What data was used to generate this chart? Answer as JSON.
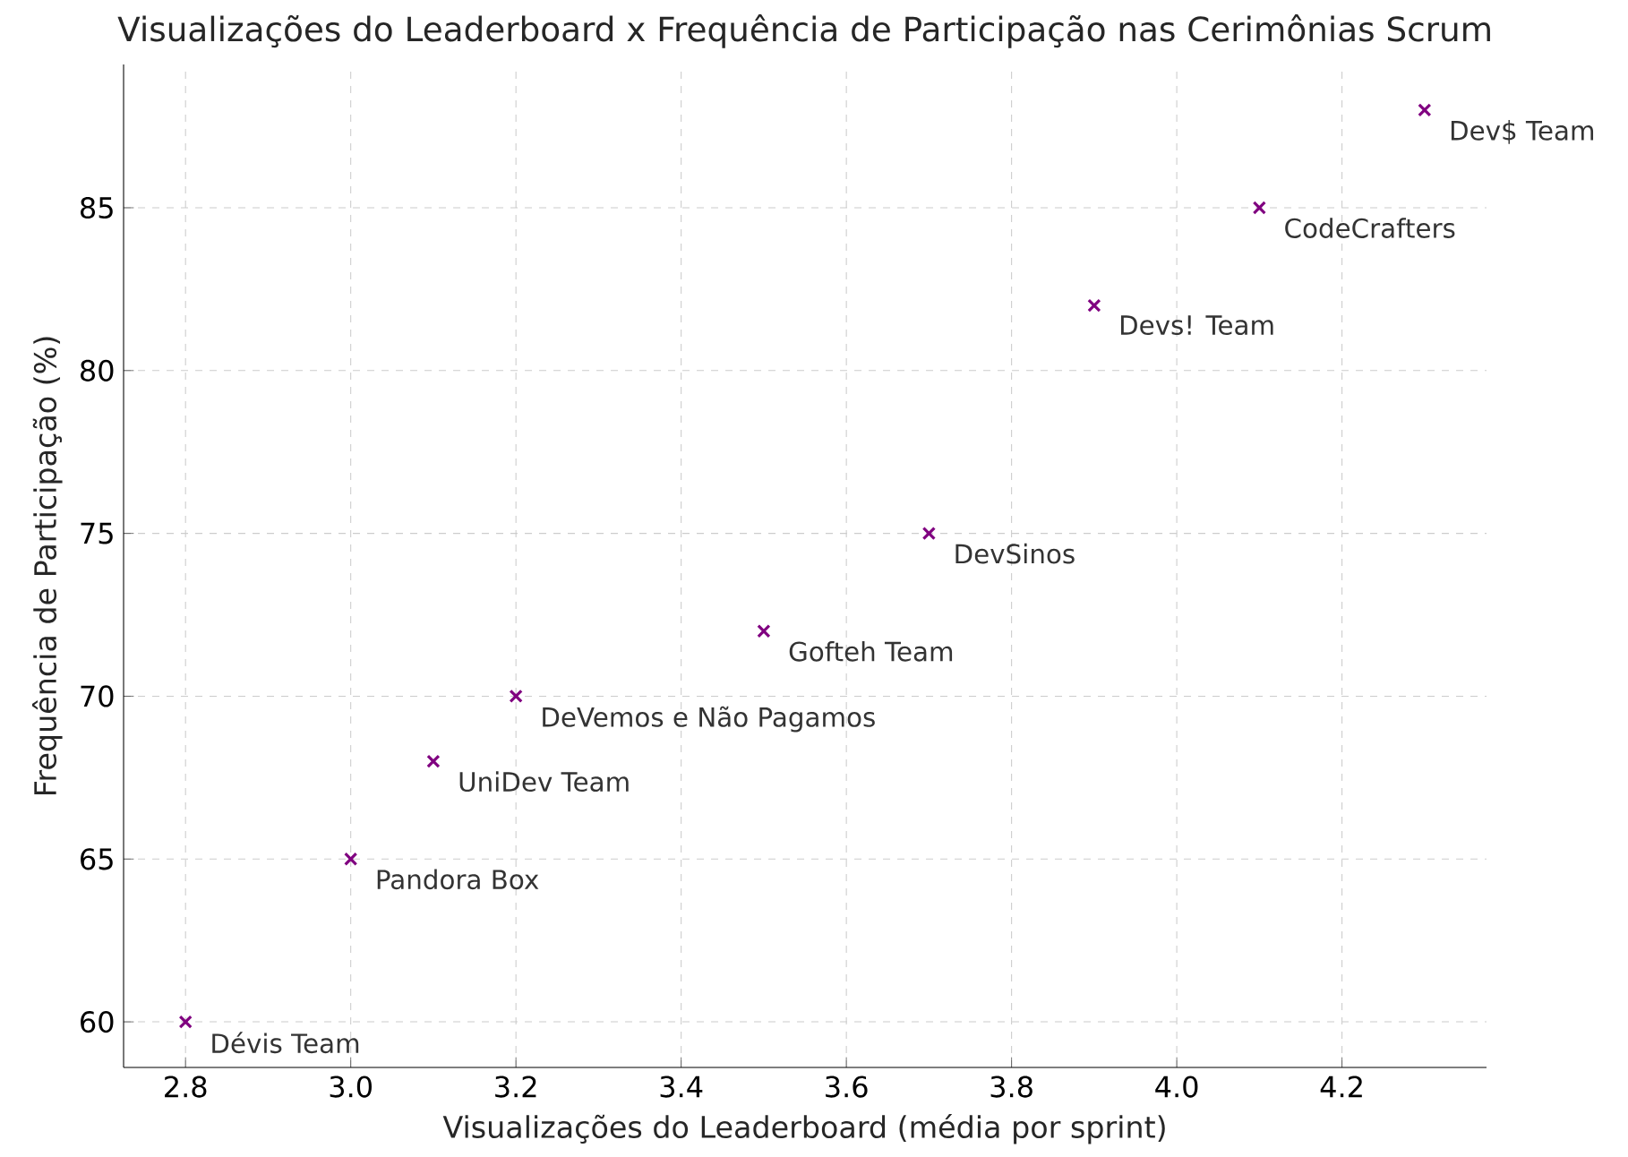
{
  "chart_data": {
    "type": "scatter",
    "title": "Visualizações do Leaderboard x Frequência de Participação nas Cerimônias Scrum",
    "xlabel": "Visualizações do Leaderboard (média por sprint)",
    "ylabel": "Frequência de Participação (%)",
    "x": [
      2.8,
      3.0,
      3.1,
      3.2,
      3.5,
      3.7,
      3.9,
      4.1,
      4.3
    ],
    "series": [
      {
        "color": "#800080",
        "values": [
          60,
          65,
          68,
          70,
          72,
          75,
          82,
          85,
          88
        ]
      }
    ],
    "marker": "cross",
    "grid": true,
    "xlim": [
      2.725,
      4.375
    ],
    "ylim": [
      58.6,
      89.4
    ],
    "xticks": [
      {
        "value": 2.8,
        "label": "2.8"
      },
      {
        "value": 3.0,
        "label": "3.0"
      },
      {
        "value": 3.2,
        "label": "3.2"
      },
      {
        "value": 3.4,
        "label": "3.4"
      },
      {
        "value": 3.6,
        "label": "3.6"
      },
      {
        "value": 3.8,
        "label": "3.8"
      },
      {
        "value": 4.0,
        "label": "4.0"
      },
      {
        "value": 4.2,
        "label": "4.2"
      }
    ],
    "yticks": [
      60,
      65,
      70,
      75,
      80,
      85
    ],
    "annotations": [
      {
        "text": "Dévis Team",
        "x": 2.8,
        "y": 60
      },
      {
        "text": "Pandora Box",
        "x": 3.0,
        "y": 65
      },
      {
        "text": "UniDev Team",
        "x": 3.1,
        "y": 68
      },
      {
        "text": "DeVemos e Não Pagamos",
        "x": 3.2,
        "y": 70
      },
      {
        "text": "Gofteh Team",
        "x": 3.5,
        "y": 72
      },
      {
        "text": "DevSinos",
        "x": 3.7,
        "y": 75
      },
      {
        "text": "Devs! Team",
        "x": 3.9,
        "y": 82
      },
      {
        "text": "CodeCrafters",
        "x": 4.1,
        "y": 85
      },
      {
        "text": "Dev$ Team",
        "x": 4.3,
        "y": 88
      }
    ]
  }
}
